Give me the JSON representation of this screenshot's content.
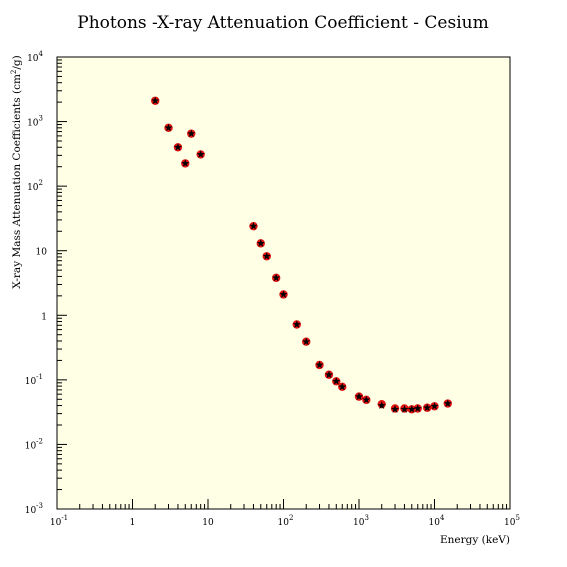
{
  "chart_data": {
    "type": "scatter",
    "title": "Photons -X-ray Attenuation Coefficient - Cesium",
    "xlabel": "Energy (keV)",
    "ylabel": "X-ray Mass Attenuation Coefficients (cm²/g)",
    "x_scale": "log",
    "y_scale": "log",
    "xlim": [
      0.1,
      100000
    ],
    "ylim": [
      0.001,
      10000
    ],
    "x_ticks": [
      {
        "value": 0.1,
        "base": "10",
        "exp": "-1"
      },
      {
        "value": 1,
        "base": "1",
        "exp": ""
      },
      {
        "value": 10,
        "base": "10",
        "exp": ""
      },
      {
        "value": 100,
        "base": "10",
        "exp": "2"
      },
      {
        "value": 1000,
        "base": "10",
        "exp": "3"
      },
      {
        "value": 10000,
        "base": "10",
        "exp": "4"
      },
      {
        "value": 100000,
        "base": "10",
        "exp": "5"
      }
    ],
    "y_ticks": [
      {
        "value": 0.001,
        "base": "10",
        "exp": "-3"
      },
      {
        "value": 0.01,
        "base": "10",
        "exp": "-2"
      },
      {
        "value": 0.1,
        "base": "10",
        "exp": "-1"
      },
      {
        "value": 1,
        "base": "1",
        "exp": ""
      },
      {
        "value": 10,
        "base": "10",
        "exp": ""
      },
      {
        "value": 100,
        "base": "10",
        "exp": "2"
      },
      {
        "value": 1000,
        "base": "10",
        "exp": "3"
      },
      {
        "value": 10000,
        "base": "10",
        "exp": "4"
      }
    ],
    "grid": false,
    "colors": {
      "plot_background": "#ffffe6",
      "marker_red": "#e0140f",
      "marker_black": "#000000",
      "axis": "#000000"
    },
    "series": [
      {
        "marker": "red-circle",
        "points": [
          [
            2,
            2100
          ],
          [
            3,
            800
          ],
          [
            4,
            400
          ],
          [
            5,
            225
          ],
          [
            6,
            650
          ],
          [
            8,
            310
          ],
          [
            40,
            24
          ],
          [
            50,
            13
          ],
          [
            60,
            8.2
          ],
          [
            80,
            3.8
          ],
          [
            100,
            2.1
          ],
          [
            150,
            0.72
          ],
          [
            200,
            0.39
          ],
          [
            300,
            0.17
          ],
          [
            400,
            0.12
          ],
          [
            500,
            0.095
          ],
          [
            600,
            0.078
          ],
          [
            1000,
            0.055
          ],
          [
            1250,
            0.049
          ],
          [
            2000,
            0.042
          ],
          [
            3000,
            0.036
          ],
          [
            4000,
            0.036
          ],
          [
            5000,
            0.035
          ],
          [
            6000,
            0.036
          ],
          [
            8000,
            0.037
          ],
          [
            10000,
            0.039
          ],
          [
            15000,
            0.043
          ]
        ]
      },
      {
        "marker": "black-star",
        "points": [
          [
            2,
            2100
          ],
          [
            3,
            800
          ],
          [
            4,
            400
          ],
          [
            5,
            225
          ],
          [
            6,
            650
          ],
          [
            8,
            310
          ],
          [
            40,
            24
          ],
          [
            50,
            13
          ],
          [
            60,
            8.2
          ],
          [
            80,
            3.8
          ],
          [
            100,
            2.1
          ],
          [
            150,
            0.72
          ],
          [
            200,
            0.39
          ],
          [
            300,
            0.17
          ],
          [
            400,
            0.12
          ],
          [
            500,
            0.095
          ],
          [
            600,
            0.078
          ],
          [
            1000,
            0.055
          ],
          [
            1250,
            0.049
          ],
          [
            2000,
            0.04
          ],
          [
            3000,
            0.035
          ],
          [
            4000,
            0.035
          ],
          [
            5000,
            0.035
          ],
          [
            6000,
            0.036
          ],
          [
            8000,
            0.037
          ],
          [
            10000,
            0.039
          ],
          [
            15000,
            0.043
          ]
        ]
      }
    ]
  }
}
